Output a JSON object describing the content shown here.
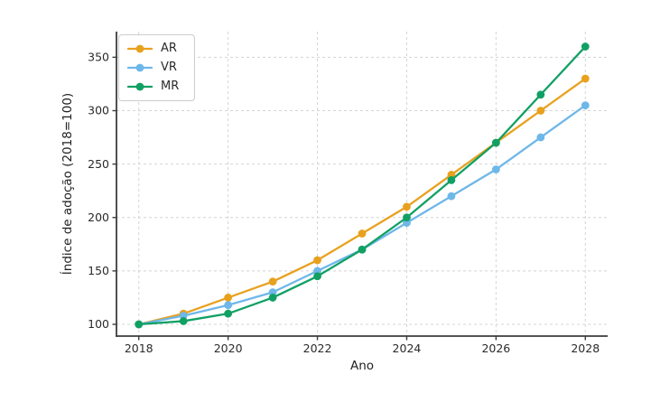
{
  "chart_data": {
    "type": "line",
    "title": "",
    "xlabel": "Ano",
    "ylabel": "Índice de adoção (2018=100)",
    "x": [
      2018,
      2019,
      2020,
      2021,
      2022,
      2023,
      2024,
      2025,
      2026,
      2027,
      2028
    ],
    "series": [
      {
        "name": "AR",
        "color": "#E8A11E",
        "values": [
          100,
          110,
          125,
          140,
          160,
          185,
          210,
          240,
          270,
          300,
          330
        ]
      },
      {
        "name": "VR",
        "color": "#6EB7E9",
        "values": [
          100,
          108,
          118,
          130,
          150,
          170,
          195,
          220,
          245,
          275,
          305
        ]
      },
      {
        "name": "MR",
        "color": "#11A064",
        "values": [
          100,
          103,
          110,
          125,
          145,
          170,
          200,
          235,
          270,
          315,
          360
        ]
      }
    ],
    "xticks": [
      2018,
      2020,
      2022,
      2024,
      2026,
      2028
    ],
    "yticks": [
      100,
      150,
      200,
      250,
      300,
      350
    ],
    "xlim": [
      2017.5,
      2028.5
    ],
    "ylim": [
      89,
      374
    ],
    "grid": true,
    "grid_style": "dashed",
    "legend_position": "upper-left"
  },
  "colors": {
    "background": "#ffffff",
    "grid": "#d4d4d4",
    "spine": "#3c3c3c",
    "tick_text": "#2a2a2a",
    "legend_border": "#cccccc"
  }
}
